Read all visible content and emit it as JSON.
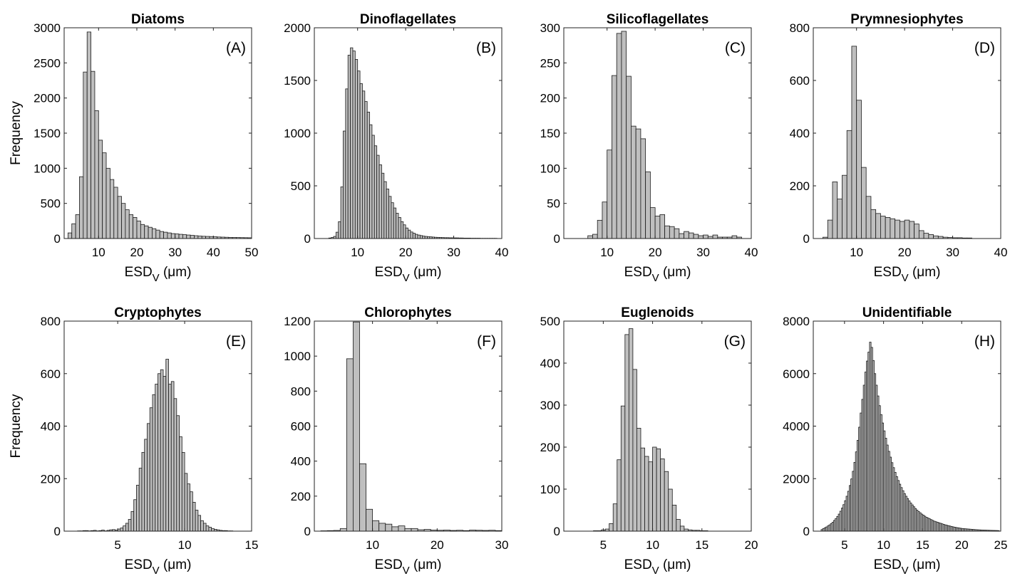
{
  "figure": {
    "bar_color": "#bfbfbf",
    "edge_color": "#1a1a1a"
  },
  "chart_data": [
    {
      "type": "bar",
      "title": "Diatoms",
      "panel_label": "(A)",
      "xlabel_main": "ESD",
      "xlabel_sub": "V",
      "xlabel_unit": " (μm)",
      "ylabel": "Frequency",
      "xlim": [
        1,
        50
      ],
      "ylim": [
        0,
        3000
      ],
      "xticks": [
        10,
        20,
        30,
        40,
        50
      ],
      "yticks": [
        0,
        500,
        1000,
        1500,
        2000,
        2500,
        3000
      ],
      "bin_start": 2,
      "bin_width": 1,
      "values": [
        80,
        210,
        340,
        880,
        2370,
        2940,
        2380,
        1820,
        1400,
        1220,
        1000,
        840,
        730,
        600,
        500,
        410,
        340,
        300,
        250,
        200,
        180,
        160,
        140,
        120,
        100,
        90,
        80,
        70,
        65,
        60,
        55,
        50,
        45,
        40,
        35,
        32,
        30,
        28,
        25,
        22,
        20,
        18,
        16,
        15,
        14,
        13,
        12,
        11
      ]
    },
    {
      "type": "bar",
      "title": "Dinoflagellates",
      "panel_label": "(B)",
      "xlabel_main": "ESD",
      "xlabel_sub": "V",
      "xlabel_unit": " (μm)",
      "ylabel": "",
      "xlim": [
        1,
        40
      ],
      "ylim": [
        0,
        2000
      ],
      "xticks": [
        10,
        20,
        30,
        40
      ],
      "yticks": [
        0,
        500,
        1000,
        1500,
        2000
      ],
      "bin_start": 4,
      "bin_width": 0.5,
      "values": [
        5,
        10,
        20,
        60,
        160,
        490,
        1020,
        1420,
        1740,
        1810,
        1780,
        1700,
        1590,
        1470,
        1400,
        1300,
        1200,
        1080,
        980,
        880,
        790,
        700,
        620,
        540,
        470,
        400,
        340,
        290,
        240,
        200,
        160,
        130,
        100,
        80,
        62,
        50,
        40,
        33,
        28,
        23,
        20,
        18,
        16,
        14,
        12,
        11,
        10,
        9,
        8,
        8,
        7,
        7,
        6,
        6,
        5,
        5,
        4,
        4,
        4,
        3,
        3,
        3,
        3,
        2,
        2,
        2,
        2,
        2,
        2,
        2
      ]
    },
    {
      "type": "bar",
      "title": "Silicoflagellates",
      "panel_label": "(C)",
      "xlabel_main": "ESD",
      "xlabel_sub": "V",
      "xlabel_unit": " (μm)",
      "ylabel": "",
      "xlim": [
        1,
        40
      ],
      "ylim": [
        0,
        300
      ],
      "xticks": [
        10,
        20,
        30,
        40
      ],
      "yticks": [
        0,
        50,
        100,
        150,
        200,
        250,
        300
      ],
      "bin_start": 6,
      "bin_width": 1,
      "values": [
        4,
        6,
        26,
        52,
        126,
        232,
        292,
        295,
        231,
        160,
        156,
        142,
        95,
        44,
        32,
        34,
        18,
        17,
        14,
        7,
        10,
        8,
        6,
        4,
        5,
        3,
        5,
        2,
        2,
        2,
        4,
        2
      ]
    },
    {
      "type": "bar",
      "title": "Prymnesiophytes",
      "panel_label": "(D)",
      "xlabel_main": "ESD",
      "xlabel_sub": "V",
      "xlabel_unit": " (μm)",
      "ylabel": "",
      "xlim": [
        1,
        40
      ],
      "ylim": [
        0,
        800
      ],
      "xticks": [
        10,
        20,
        30,
        40
      ],
      "yticks": [
        0,
        200,
        400,
        600,
        800
      ],
      "bin_start": 3,
      "bin_width": 1,
      "values": [
        5,
        70,
        215,
        150,
        240,
        410,
        730,
        525,
        270,
        160,
        110,
        95,
        85,
        80,
        75,
        70,
        65,
        70,
        65,
        55,
        30,
        20,
        15,
        10,
        8,
        5,
        4,
        3,
        3,
        2,
        2
      ]
    },
    {
      "type": "bar",
      "title": "Cryptophytes",
      "panel_label": "(E)",
      "xlabel_main": "ESD",
      "xlabel_sub": "V",
      "xlabel_unit": " (μm)",
      "ylabel": "Frequency",
      "xlim": [
        1,
        15
      ],
      "ylim": [
        0,
        800
      ],
      "xticks": [
        5,
        10,
        15
      ],
      "yticks": [
        0,
        200,
        400,
        600,
        800
      ],
      "bin_start": 2,
      "bin_width": 0.2,
      "values": [
        1,
        1,
        2,
        2,
        1,
        2,
        3,
        1,
        2,
        4,
        1,
        3,
        5,
        6,
        4,
        8,
        12,
        20,
        30,
        45,
        75,
        120,
        175,
        240,
        300,
        350,
        410,
        470,
        520,
        560,
        600,
        615,
        590,
        655,
        560,
        570,
        505,
        440,
        360,
        300,
        220,
        180,
        150,
        110,
        80,
        60,
        40,
        30,
        20,
        15,
        10,
        7,
        5,
        3,
        2,
        2,
        1,
        1
      ]
    },
    {
      "type": "bar",
      "title": "Chlorophytes",
      "panel_label": "(F)",
      "xlabel_main": "ESD",
      "xlabel_sub": "V",
      "xlabel_unit": " (μm)",
      "ylabel": "",
      "xlim": [
        1,
        30
      ],
      "ylim": [
        0,
        1200
      ],
      "xticks": [
        10,
        20,
        30
      ],
      "yticks": [
        0,
        200,
        400,
        600,
        800,
        1000,
        1200
      ],
      "bin_start": 2,
      "bin_width": 1,
      "values": [
        2,
        3,
        4,
        15,
        985,
        1195,
        385,
        125,
        60,
        45,
        40,
        25,
        30,
        15,
        15,
        8,
        10,
        6,
        5,
        6,
        4,
        5,
        3,
        6,
        5,
        4,
        5,
        3
      ]
    },
    {
      "type": "bar",
      "title": "Euglenoids",
      "panel_label": "(G)",
      "xlabel_main": "ESD",
      "xlabel_sub": "V",
      "xlabel_unit": " (μm)",
      "ylabel": "",
      "xlim": [
        1,
        20
      ],
      "ylim": [
        0,
        500
      ],
      "xticks": [
        5,
        10,
        15,
        20
      ],
      "yticks": [
        0,
        100,
        200,
        300,
        400,
        500
      ],
      "bin_start": 4,
      "bin_width": 0.4,
      "values": [
        1,
        1,
        3,
        5,
        18,
        65,
        170,
        298,
        468,
        482,
        385,
        245,
        198,
        178,
        165,
        200,
        196,
        172,
        142,
        100,
        62,
        28,
        12,
        5,
        3,
        2,
        2,
        1,
        1
      ]
    },
    {
      "type": "bar",
      "title": "Unidentifiable",
      "panel_label": "(H)",
      "xlabel_main": "ESD",
      "xlabel_sub": "V",
      "xlabel_unit": " (μm)",
      "ylabel": "",
      "xlim": [
        1,
        25
      ],
      "ylim": [
        0,
        8000
      ],
      "xticks": [
        5,
        10,
        15,
        20,
        25
      ],
      "yticks": [
        0,
        2000,
        4000,
        6000,
        8000
      ],
      "bin_start": 2,
      "bin_width": 0.2,
      "values": [
        60,
        100,
        130,
        160,
        200,
        240,
        290,
        340,
        410,
        480,
        560,
        650,
        760,
        880,
        1010,
        1160,
        1330,
        1520,
        1740,
        1990,
        2280,
        2620,
        3020,
        3460,
        3960,
        4500,
        5020,
        5560,
        6060,
        6480,
        6820,
        7200,
        7000,
        6500,
        6000,
        5560,
        5150,
        4780,
        4440,
        4120,
        3820,
        3540,
        3280,
        3040,
        2820,
        2610,
        2420,
        2240,
        2080,
        1930,
        1790,
        1660,
        1540,
        1430,
        1330,
        1240,
        1150,
        1070,
        1000,
        930,
        860,
        800,
        750,
        700,
        650,
        610,
        570,
        530,
        500,
        470,
        440,
        410,
        380,
        360,
        340,
        320,
        300,
        280,
        260,
        240,
        225,
        210,
        195,
        180,
        165,
        150,
        140,
        130,
        120,
        110,
        100,
        95,
        90,
        85,
        80,
        75,
        70,
        65,
        60,
        56,
        52,
        48,
        45,
        42,
        40,
        37,
        35,
        33,
        31,
        29,
        27,
        25,
        23,
        21
      ]
    }
  ]
}
